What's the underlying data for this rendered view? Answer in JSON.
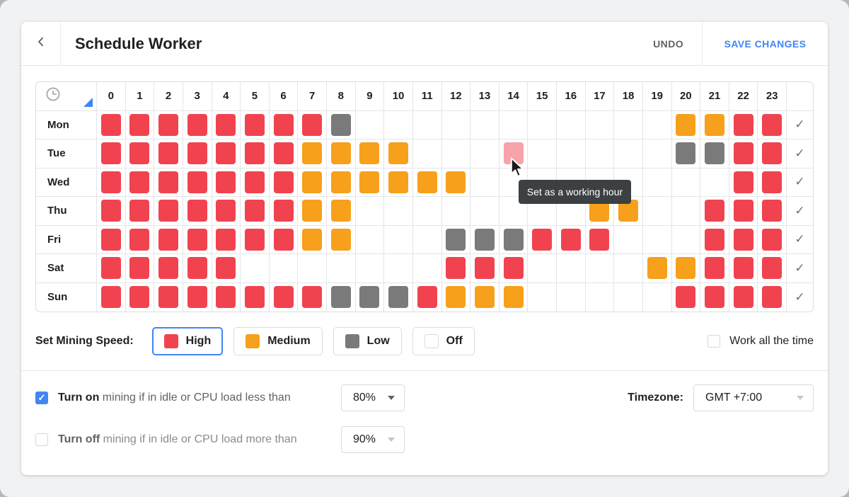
{
  "header": {
    "title": "Schedule Worker",
    "undo_label": "UNDO",
    "save_label": "SAVE CHANGES"
  },
  "colors": {
    "high": "#f1434f",
    "medium": "#f7a01b",
    "low": "#7a7a7a",
    "off": "#ffffff",
    "hover_cell": "#f8a2aa",
    "accent_blue": "#4285f4",
    "tooltip_bg": "#3c4043",
    "grid_line": "#e3e5e7"
  },
  "grid": {
    "corner_icon": "clock-icon",
    "hours": [
      "0",
      "1",
      "2",
      "3",
      "4",
      "5",
      "6",
      "7",
      "8",
      "9",
      "10",
      "11",
      "12",
      "13",
      "14",
      "15",
      "16",
      "17",
      "18",
      "19",
      "20",
      "21",
      "22",
      "23"
    ],
    "check_glyph": "✓",
    "days": [
      {
        "label": "Mon",
        "cells": [
          "high",
          "high",
          "high",
          "high",
          "high",
          "high",
          "high",
          "high",
          "low",
          "off",
          "off",
          "off",
          "off",
          "off",
          "off",
          "off",
          "off",
          "off",
          "off",
          "off",
          "medium",
          "medium",
          "high",
          "high"
        ]
      },
      {
        "label": "Tue",
        "cells": [
          "high",
          "high",
          "high",
          "high",
          "high",
          "high",
          "high",
          "medium",
          "medium",
          "medium",
          "medium",
          "off",
          "off",
          "off",
          "hover",
          "off",
          "off",
          "off",
          "off",
          "off",
          "low",
          "low",
          "high",
          "high"
        ]
      },
      {
        "label": "Wed",
        "cells": [
          "high",
          "high",
          "high",
          "high",
          "high",
          "high",
          "high",
          "medium",
          "medium",
          "medium",
          "medium",
          "medium",
          "medium",
          "off",
          "off",
          "off",
          "off",
          "off",
          "off",
          "off",
          "off",
          "off",
          "high",
          "high"
        ]
      },
      {
        "label": "Thu",
        "cells": [
          "high",
          "high",
          "high",
          "high",
          "high",
          "high",
          "high",
          "medium",
          "medium",
          "off",
          "off",
          "off",
          "off",
          "off",
          "off",
          "off",
          "off",
          "medium",
          "medium",
          "off",
          "off",
          "high",
          "high",
          "high"
        ]
      },
      {
        "label": "Fri",
        "cells": [
          "high",
          "high",
          "high",
          "high",
          "high",
          "high",
          "high",
          "medium",
          "medium",
          "off",
          "off",
          "off",
          "low",
          "low",
          "low",
          "high",
          "high",
          "high",
          "off",
          "off",
          "off",
          "high",
          "high",
          "high"
        ]
      },
      {
        "label": "Sat",
        "cells": [
          "high",
          "high",
          "high",
          "high",
          "high",
          "off",
          "off",
          "off",
          "off",
          "off",
          "off",
          "off",
          "high",
          "high",
          "high",
          "off",
          "off",
          "off",
          "off",
          "medium",
          "medium",
          "high",
          "high",
          "high"
        ]
      },
      {
        "label": "Sun",
        "cells": [
          "high",
          "high",
          "high",
          "high",
          "high",
          "high",
          "high",
          "high",
          "low",
          "low",
          "low",
          "high",
          "medium",
          "medium",
          "medium",
          "off",
          "off",
          "off",
          "off",
          "off",
          "high",
          "high",
          "high",
          "high"
        ]
      }
    ]
  },
  "tooltip": {
    "text": "Set as a working hour"
  },
  "legend": {
    "label": "Set Mining Speed:",
    "options": [
      {
        "label": "High",
        "color": "#f1434f",
        "selected": true
      },
      {
        "label": "Medium",
        "color": "#f7a01b",
        "selected": false
      },
      {
        "label": "Low",
        "color": "#7a7a7a",
        "selected": false
      },
      {
        "label": "Off",
        "color": "#ffffff",
        "selected": false
      }
    ],
    "work_all_label": "Work all the time",
    "work_all_checked": false
  },
  "settings": {
    "turn_on": {
      "checked": true,
      "bold": "Turn on",
      "rest": " mining if in idle or CPU load less than",
      "value": "80%"
    },
    "turn_off": {
      "checked": false,
      "bold": "Turn off",
      "rest": " mining if in idle or CPU load more than",
      "value": "90%"
    },
    "timezone": {
      "label": "Timezone:",
      "value": "GMT +7:00"
    }
  }
}
